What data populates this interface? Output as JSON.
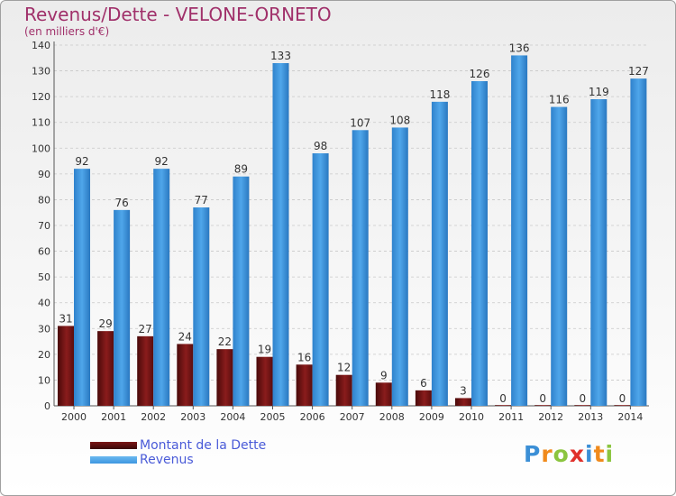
{
  "header": {
    "title": "Revenus/Dette - VELONE-ORNETO",
    "subtitle": "(en milliers d'€)"
  },
  "chart_data": {
    "type": "bar",
    "title": "Revenus/Dette - VELONE-ORNETO",
    "ylabel": "(en milliers d'€)",
    "xlabel": "",
    "categories": [
      "2000",
      "2001",
      "2002",
      "2003",
      "2004",
      "2005",
      "2006",
      "2007",
      "2008",
      "2009",
      "2010",
      "2011",
      "2012",
      "2013",
      "2014"
    ],
    "ylim": [
      0,
      140
    ],
    "yticks": [
      0,
      10,
      20,
      30,
      40,
      50,
      60,
      70,
      80,
      90,
      100,
      110,
      120,
      130,
      140
    ],
    "grid": true,
    "series": [
      {
        "name": "Montant de la Dette",
        "color": "#7a1616",
        "values": [
          31,
          29,
          27,
          24,
          22,
          19,
          16,
          12,
          9,
          6,
          3,
          0,
          0,
          0,
          0
        ]
      },
      {
        "name": "Revenus",
        "color": "#3d97e0",
        "values": [
          92,
          76,
          92,
          77,
          89,
          133,
          98,
          107,
          108,
          118,
          126,
          136,
          116,
          119,
          127
        ]
      }
    ],
    "legend_position": "bottom-left"
  },
  "legend": {
    "items": [
      {
        "label": "Montant de la Dette",
        "color": "#7a1616"
      },
      {
        "label": "Revenus",
        "color": "#3d97e0"
      }
    ]
  },
  "logo": {
    "text": "Proxiti",
    "letters": [
      {
        "ch": "P",
        "color": "#3b8fd6"
      },
      {
        "ch": "r",
        "color": "#f08a1c"
      },
      {
        "ch": "o",
        "color": "#8bc53f"
      },
      {
        "ch": "x",
        "color": "#e0312b"
      },
      {
        "ch": "i",
        "color": "#3b8fd6"
      },
      {
        "ch": "t",
        "color": "#f08a1c"
      },
      {
        "ch": "i",
        "color": "#8bc53f"
      }
    ]
  }
}
